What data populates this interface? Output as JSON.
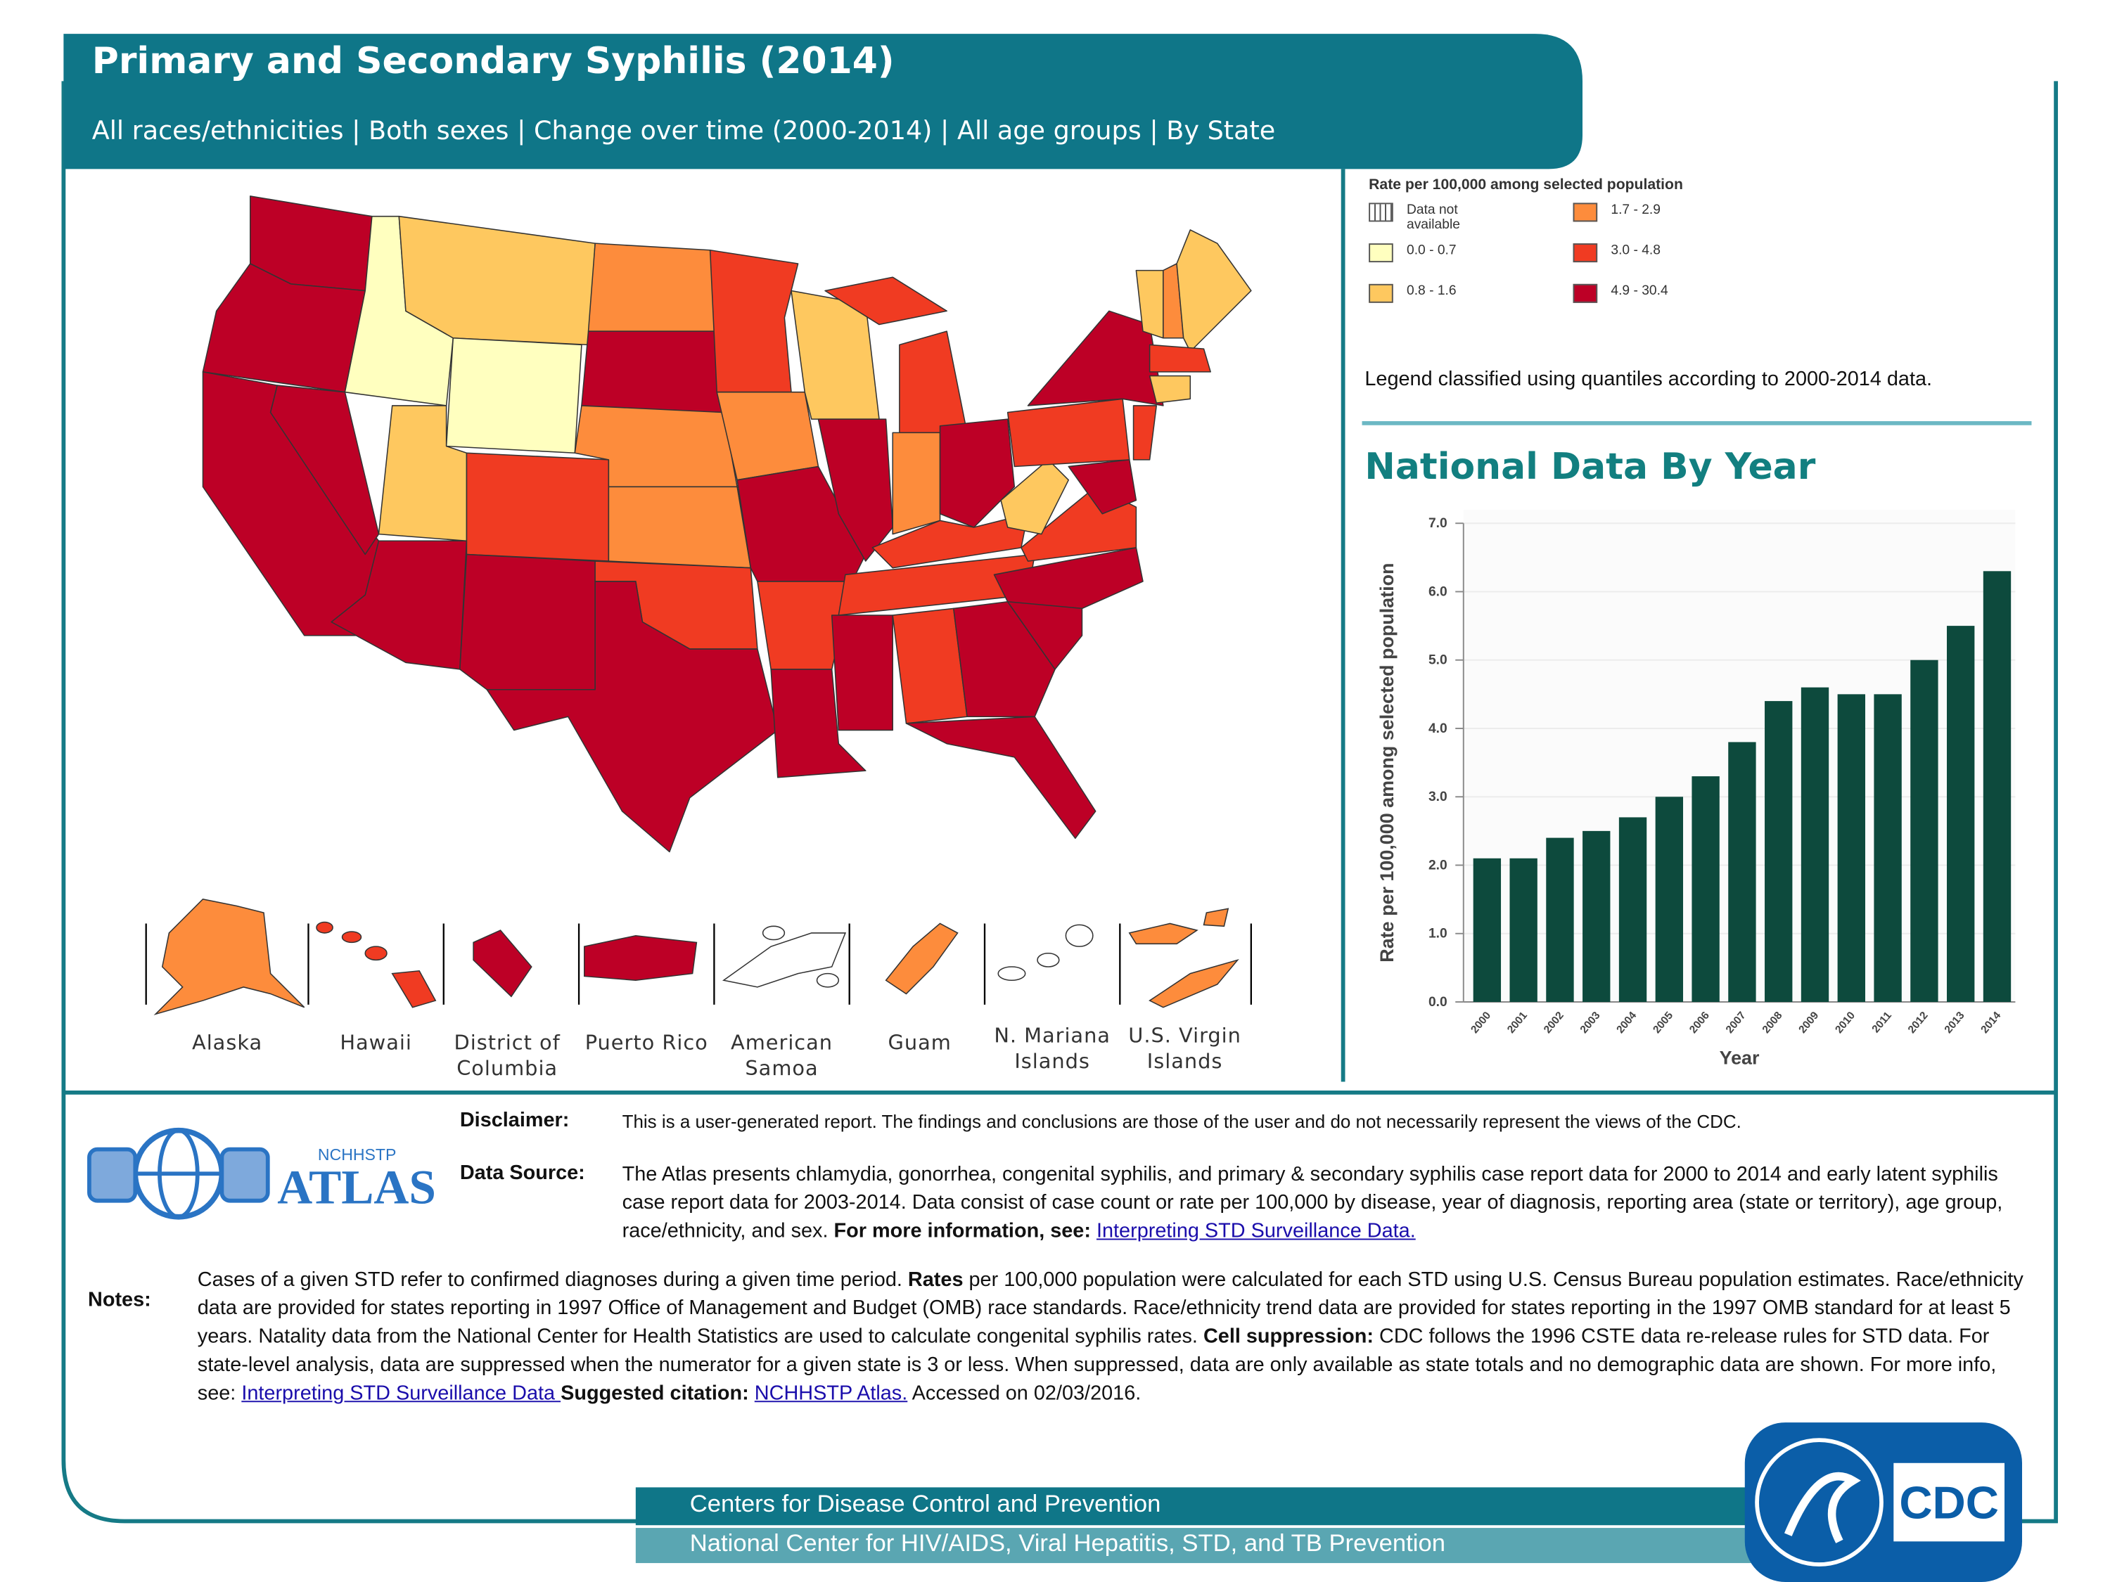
{
  "header": {
    "title": "Primary and Secondary Syphilis (2014)",
    "subtitle": "All races/ethnicities | Both sexes | Change over time (2000-2014) | All age groups | By State"
  },
  "legend": {
    "title": "Rate per 100,000 among selected population",
    "items": [
      {
        "label": "Data not available",
        "color": "none"
      },
      {
        "label": "0.0 - 0.7",
        "color": "#ffffbf"
      },
      {
        "label": "0.8 - 1.6",
        "color": "#fec85f"
      },
      {
        "label": "1.7 - 2.9",
        "color": "#fd8c3c"
      },
      {
        "label": "3.0 - 4.8",
        "color": "#f03b22"
      },
      {
        "label": "4.9 - 30.4",
        "color": "#bd0026"
      }
    ],
    "note": "Legend classified using quantiles according to 2000-2014 data."
  },
  "territories": [
    {
      "label": "Alaska",
      "class": 3
    },
    {
      "label": "Hawaii",
      "class": 4
    },
    {
      "label": "District of Columbia",
      "class": 5
    },
    {
      "label": "Puerto Rico",
      "class": 5
    },
    {
      "label": "American Samoa",
      "class": 0
    },
    {
      "label": "Guam",
      "class": 3
    },
    {
      "label": "N. Mariana Islands",
      "class": 0
    },
    {
      "label": "U.S. Virgin Islands",
      "class": 3
    }
  ],
  "chart_data": {
    "type": "bar",
    "title": "National Data By Year",
    "ylabel": "Rate per 100,000 among selected population",
    "xlabel": "Year",
    "categories": [
      "2000",
      "2001",
      "2002",
      "2003",
      "2004",
      "2005",
      "2006",
      "2007",
      "2008",
      "2009",
      "2010",
      "2011",
      "2012",
      "2013",
      "2014"
    ],
    "values": [
      2.1,
      2.1,
      2.4,
      2.5,
      2.7,
      3.0,
      3.3,
      3.8,
      4.4,
      4.6,
      4.5,
      4.5,
      5.0,
      5.5,
      6.3
    ],
    "color": "#0d4a3d",
    "ylim": [
      0,
      7
    ],
    "yticks": [
      {
        "value": 0,
        "label": "0.0"
      },
      {
        "value": 1,
        "label": "1.0"
      },
      {
        "value": 2,
        "label": "2.0"
      },
      {
        "value": 3,
        "label": "3.0"
      },
      {
        "value": 4,
        "label": "4.0"
      },
      {
        "value": 5,
        "label": "5.0"
      },
      {
        "value": 6,
        "label": "6.0"
      },
      {
        "value": 7,
        "label": "7.0"
      }
    ],
    "grid": true
  },
  "disclaimer": {
    "label": "Disclaimer:",
    "text": "This is a user-generated report. The findings and conclusions are those of the user and do not necessarily represent the views of the CDC."
  },
  "data_source": {
    "label": "Data Source:",
    "segments": [
      {
        "text": "The Atlas presents chlamydia, gonorrhea, congenital syphilis, and primary & secondary syphilis case report data for 2000 to 2014 and early latent syphilis case report data for 2003-2014. Data consist of case count or rate per 100,000 by disease, year of diagnosis, reporting area (state or territory), age group, race/ethnicity, and sex. ",
        "style": "plain"
      },
      {
        "text": "For more information, see: ",
        "style": "bold"
      },
      {
        "text": "Interpreting STD Surveillance Data.",
        "style": "link"
      }
    ]
  },
  "notes": {
    "label": "Notes:",
    "segments": [
      {
        "text": "Cases of a given STD refer to confirmed diagnoses during a given time period. ",
        "style": "plain"
      },
      {
        "text": "Rates",
        "style": "bold"
      },
      {
        "text": " per 100,000 population were calculated for each STD using U.S. Census Bureau population estimates. Race/ethnicity data are provided for states reporting in 1997 Office of Management and Budget (OMB) race standards. Race/ethnicity trend data are provided for states reporting in the 1997 OMB standard for at least 5 years. Natality data from the National Center for Health Statistics are used to calculate congenital syphilis rates. ",
        "style": "plain"
      },
      {
        "text": "Cell suppression:",
        "style": "bold"
      },
      {
        "text": " CDC follows the 1996 CSTE data re-release rules for STD data. For state-level analysis, data are suppressed when the numerator for a given state is 3 or less. When suppressed, data are only available as state totals and no demographic data are shown. For more info, see: ",
        "style": "plain"
      },
      {
        "text": "Interpreting STD Surveillance Data ",
        "style": "link"
      },
      {
        "text": "Suggested citation:",
        "style": "bold"
      },
      {
        "text": " ",
        "style": "plain"
      },
      {
        "text": "NCHHSTP Atlas.",
        "style": "link"
      },
      {
        "text": " Accessed on 02/03/2016.",
        "style": "plain"
      }
    ]
  },
  "logos": {
    "atlas_top": "NCHHSTP",
    "atlas": "ATLAS",
    "cdc": "CDC"
  },
  "footer": {
    "line1": "Centers for Disease Control and Prevention",
    "line2": "National Center for HIV/AIDS, Viral Hepatitis, STD, and TB Prevention"
  }
}
